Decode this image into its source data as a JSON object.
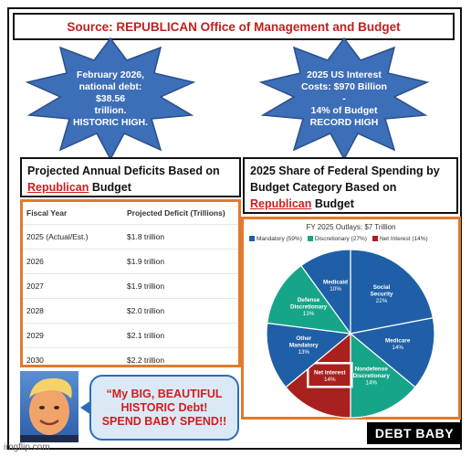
{
  "header": {
    "source_label": "Source: REPUBLICAN Office of Management and Budget"
  },
  "stars": {
    "left": [
      "February 2026,",
      "national debt:  $38.56",
      "trillion.",
      "HISTORIC HIGH."
    ],
    "right": [
      "2025 US Interest",
      "Costs: $970 Billion -",
      "14% of Budget",
      "RECORD HIGH"
    ]
  },
  "deficit_panel": {
    "title_line1": "Projected Annual Deficits Based on",
    "title_red": "Republican",
    "title_rest": " Budget",
    "columns": [
      "Fiscal Year",
      "Projected Deficit (Trillions)"
    ],
    "rows": [
      [
        "2025 (Actual/Est.)",
        "$1.8 trillion"
      ],
      [
        "2026",
        "$1.9 trillion"
      ],
      [
        "2027",
        "$1.9 trillion"
      ],
      [
        "2028",
        "$2.0 trillion"
      ],
      [
        "2029",
        "$2.1 trillion"
      ],
      [
        "2030",
        "$2.2 trillion"
      ]
    ]
  },
  "spending_panel": {
    "title_line1": "2025 Share of Federal Spending by",
    "title_line2": "Budget Category Based on",
    "title_red": "Republican",
    "title_rest": " Budget"
  },
  "chart_data": {
    "type": "pie",
    "title": "FY 2025 Outlays: $7 Trillion",
    "legend": [
      {
        "name": "Mandatory (59%)",
        "color": "#1f5fa8"
      },
      {
        "name": "Discretionary (27%)",
        "color": "#17a589"
      },
      {
        "name": "Net Interest (14%)",
        "color": "#a8211e"
      }
    ],
    "slices": [
      {
        "label": "Social Security",
        "value": 22,
        "color": "#1f5fa8"
      },
      {
        "label": "Medicare",
        "value": 14,
        "color": "#1f5fa8"
      },
      {
        "label": "Nondefense Discretionary",
        "value": 14,
        "color": "#17a589"
      },
      {
        "label": "Net Interest",
        "value": 14,
        "color": "#a8211e"
      },
      {
        "label": "Other Mandatory",
        "value": 13,
        "color": "#1f5fa8"
      },
      {
        "label": "Defense Discretionary",
        "value": 13,
        "color": "#17a589"
      },
      {
        "label": "Medicaid",
        "value": 10,
        "color": "#1f5fa8"
      }
    ],
    "value_labels": [
      "22%",
      "14%",
      "14%",
      "14%",
      "13%",
      "13%",
      "10%"
    ]
  },
  "quote": {
    "lines": [
      "“My BIG, BEAUTIFUL",
      "HISTORIC Debt!",
      "SPEND BABY SPEND!!"
    ]
  },
  "badge": "DEBT BABY",
  "watermark": "imgflip.com",
  "colors": {
    "star_blue": "#3d6eb8",
    "accent_red": "#d21d1d",
    "orange_border": "#e07b2d"
  }
}
